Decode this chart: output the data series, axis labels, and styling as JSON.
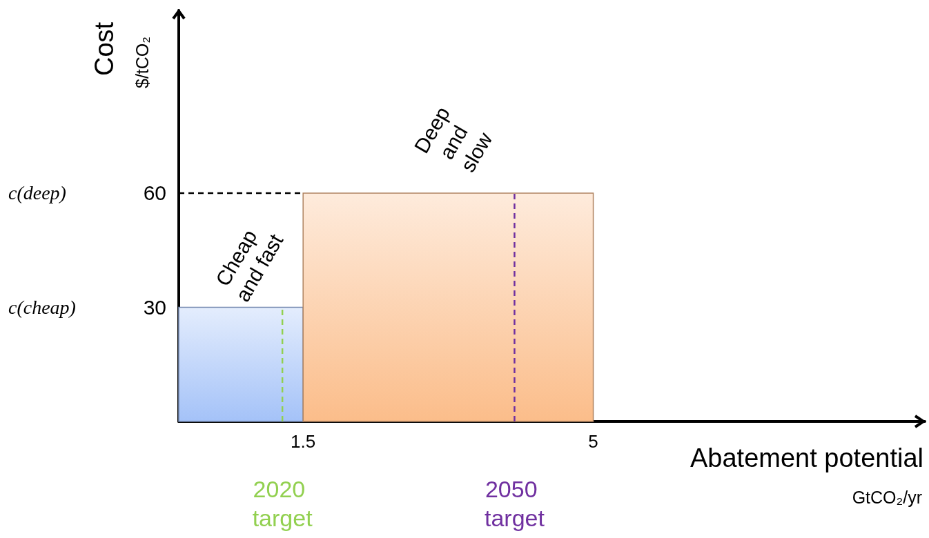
{
  "chart_data": {
    "type": "histogram",
    "bins": [
      0,
      1.5,
      5
    ],
    "values": [
      30,
      60
    ],
    "colors": [
      "#a4c2f8",
      "#fbbd8a"
    ],
    "xlim": [
      0,
      9
    ],
    "ylim": [
      0,
      108
    ],
    "xticks": [
      1.5,
      5
    ],
    "yticks": [
      30,
      60
    ],
    "xlabel": "Abatement potential\nGtCO₂/yr",
    "ylabel": "Cost\n$/tCO₂",
    "grid": false,
    "ref_lines": [
      {
        "axis": "y",
        "value": 60,
        "color": "#000000",
        "line_style": "dashed"
      },
      {
        "axis": "x",
        "value": 1.25,
        "label": "2020 target",
        "color": "#92d050",
        "line_style": "dashed"
      },
      {
        "axis": "x",
        "value": 4.05,
        "label": "2050 target",
        "color": "#7030a0",
        "line_style": "dashed"
      }
    ],
    "annotations": [
      "Cheap and fast",
      "Deep and slow",
      "c(deep)",
      "c(cheap)"
    ]
  }
}
